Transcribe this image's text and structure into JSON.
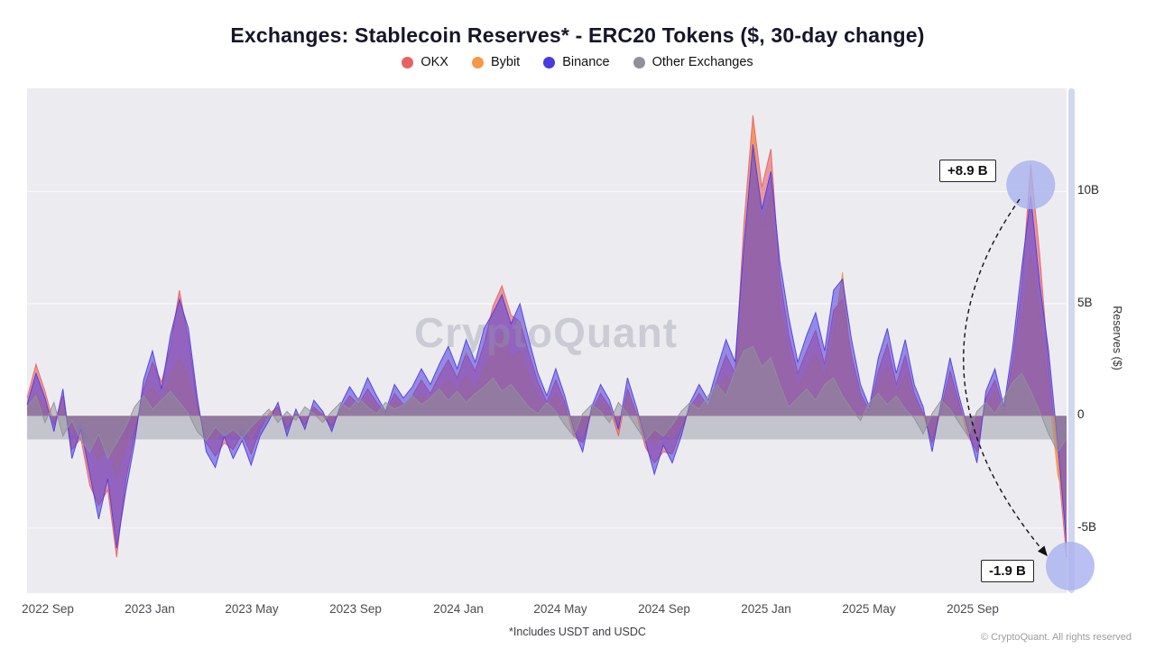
{
  "watermark": "CryptoQuant",
  "footnote": "*Includes USDT and USDC",
  "copyright": "© CryptoQuant. All rights reserved",
  "chart_data": {
    "type": "area",
    "title": "Exchanges: Stablecoin Reserves* - ERC20 Tokens ($, 30-day change)",
    "xlabel": "",
    "ylabel": "Reserves ($)",
    "unit": "billions USD (30-day change)",
    "ylim": [
      -7.9,
      14.6
    ],
    "grid": "horizontal",
    "legend_position": "top",
    "x_note": "evenly spaced samples (~10.7 days apart) from late Aug 2022 to mid Nov 2025; x_ticks give calendar anchors by sample index t",
    "x_ticks": [
      {
        "label": "2022 Sep",
        "t": 2.3
      },
      {
        "label": "2023 Jan",
        "t": 13.7
      },
      {
        "label": "2023 May",
        "t": 25.1
      },
      {
        "label": "2023 Sep",
        "t": 36.7
      },
      {
        "label": "2024 Jan",
        "t": 48.1
      },
      {
        "label": "2024 May",
        "t": 59.5
      },
      {
        "label": "2024 Sep",
        "t": 71.1
      },
      {
        "label": "2025 Jan",
        "t": 82.5
      },
      {
        "label": "2025 May",
        "t": 93.9
      },
      {
        "label": "2025 Sep",
        "t": 105.5
      }
    ],
    "y_ticks": [
      {
        "label": "10B",
        "value": 10
      },
      {
        "label": "5B",
        "value": 5
      },
      {
        "label": "0",
        "value": 0
      },
      {
        "label": "-5B",
        "value": -5
      }
    ],
    "zero_band": {
      "from": 0,
      "to": -1.05,
      "color": "#bdbdc5"
    },
    "series": [
      {
        "name": "OKX",
        "color": "#e86161",
        "fill_opacity": 0.6,
        "values": [
          0.8,
          2.3,
          1.1,
          -0.4,
          0.9,
          -1.5,
          -1.0,
          -3.1,
          -4.0,
          -3.3,
          -6.3,
          -2.9,
          -0.8,
          1.2,
          2.4,
          1.5,
          3.1,
          5.6,
          3.4,
          0.5,
          -1.2,
          -1.8,
          -1.2,
          -1.5,
          -0.8,
          -1.7,
          -0.6,
          0.1,
          0.4,
          -0.6,
          0.1,
          -0.4,
          0.4,
          0.0,
          -0.5,
          0.3,
          0.9,
          0.5,
          1.2,
          0.6,
          0.1,
          1.0,
          0.5,
          0.9,
          1.6,
          1.0,
          1.8,
          2.5,
          1.7,
          2.8,
          2.0,
          3.2,
          4.9,
          5.8,
          4.5,
          4.2,
          2.8,
          1.5,
          0.6,
          1.6,
          0.6,
          -0.9,
          -1.2,
          0.2,
          1.0,
          0.4,
          -0.9,
          1.2,
          0.1,
          -1.4,
          -2.1,
          -1.6,
          -1.7,
          -0.6,
          0.4,
          1.0,
          0.4,
          1.6,
          2.7,
          1.9,
          8.6,
          13.4,
          10.2,
          11.9,
          6.2,
          3.6,
          1.9,
          2.9,
          3.8,
          2.3,
          4.7,
          5.2,
          2.7,
          1.0,
          0.2,
          2.0,
          3.2,
          1.4,
          2.7,
          1.0,
          0.1,
          -1.2,
          0.3,
          2.0,
          0.6,
          -0.9,
          -1.6,
          0.8,
          1.6,
          0.2,
          2.5,
          5.8,
          11.2,
          7.2,
          2.2,
          -2.0,
          -6.3
        ]
      },
      {
        "name": "Bybit",
        "color": "#f5984a",
        "fill_opacity": 0.65,
        "values": [
          0.3,
          1.0,
          0.4,
          -0.2,
          0.5,
          -0.8,
          -0.3,
          -1.2,
          -2.0,
          -1.4,
          -2.8,
          -1.5,
          -0.4,
          0.7,
          1.3,
          0.6,
          1.8,
          2.6,
          1.7,
          0.3,
          -0.8,
          -1.1,
          -0.5,
          -0.9,
          -0.5,
          -1.0,
          -0.4,
          0.0,
          0.3,
          -0.4,
          0.1,
          -0.3,
          0.3,
          0.1,
          -0.3,
          0.2,
          0.6,
          0.3,
          0.8,
          0.4,
          0.1,
          0.7,
          0.4,
          0.6,
          1.0,
          0.7,
          1.2,
          1.6,
          1.1,
          1.8,
          1.2,
          2.1,
          3.0,
          3.8,
          2.6,
          2.9,
          1.8,
          0.9,
          0.4,
          1.0,
          0.4,
          -0.5,
          -0.8,
          0.2,
          0.7,
          0.3,
          -0.4,
          0.8,
          0.1,
          -0.7,
          -1.3,
          -0.8,
          -1.0,
          -0.4,
          0.3,
          0.7,
          0.3,
          1.1,
          1.8,
          1.3,
          5.9,
          13.0,
          8.4,
          9.9,
          4.8,
          2.8,
          1.3,
          2.1,
          2.8,
          1.7,
          3.6,
          6.4,
          2.1,
          0.7,
          0.1,
          1.4,
          2.3,
          1.0,
          1.9,
          0.7,
          0.0,
          -0.9,
          0.2,
          1.4,
          0.4,
          -0.6,
          -1.1,
          0.5,
          1.1,
          0.1,
          1.8,
          4.2,
          7.3,
          4.6,
          1.2,
          -2.6,
          -4.2
        ]
      },
      {
        "name": "Binance",
        "color": "#4b3ae0",
        "fill_opacity": 0.55,
        "values": [
          0.5,
          1.9,
          0.8,
          -0.7,
          1.2,
          -1.9,
          -0.6,
          -2.6,
          -4.6,
          -2.8,
          -5.9,
          -3.4,
          -1.2,
          1.6,
          2.9,
          1.2,
          3.6,
          5.2,
          3.9,
          0.8,
          -1.6,
          -2.3,
          -0.9,
          -1.9,
          -1.1,
          -2.2,
          -0.9,
          -0.2,
          0.6,
          -0.9,
          0.3,
          -0.6,
          0.7,
          0.2,
          -0.7,
          0.5,
          1.3,
          0.7,
          1.7,
          0.9,
          0.2,
          1.4,
          0.8,
          1.3,
          2.1,
          1.4,
          2.3,
          3.1,
          2.1,
          3.4,
          2.4,
          3.9,
          4.6,
          5.4,
          4.1,
          5.0,
          3.4,
          1.9,
          0.9,
          2.1,
          0.9,
          -0.6,
          -1.6,
          0.4,
          1.4,
          0.7,
          -0.6,
          1.7,
          0.4,
          -1.1,
          -2.6,
          -1.3,
          -2.1,
          -0.9,
          0.6,
          1.4,
          0.7,
          2.1,
          3.4,
          2.4,
          7.6,
          12.1,
          9.2,
          10.9,
          6.9,
          4.4,
          2.4,
          3.6,
          4.6,
          2.9,
          5.6,
          6.1,
          3.4,
          1.4,
          0.4,
          2.6,
          3.9,
          1.9,
          3.4,
          1.4,
          0.4,
          -1.6,
          0.6,
          2.6,
          0.9,
          -0.6,
          -2.1,
          1.1,
          2.1,
          0.4,
          3.1,
          6.6,
          9.8,
          5.9,
          2.9,
          -1.2,
          -5.7
        ]
      },
      {
        "name": "Other Exchanges",
        "color": "#90909a",
        "fill_opacity": 0.5,
        "values": [
          0.4,
          0.9,
          -0.3,
          0.6,
          -0.9,
          -0.2,
          -1.1,
          -1.6,
          -0.8,
          -1.9,
          -1.2,
          -0.5,
          0.4,
          0.9,
          0.3,
          0.7,
          1.1,
          0.6,
          0.1,
          -0.7,
          -1.1,
          -0.5,
          -0.9,
          -0.6,
          -1.0,
          -0.5,
          -0.1,
          0.3,
          -0.3,
          0.2,
          -0.2,
          0.4,
          0.1,
          -0.3,
          0.2,
          0.6,
          0.3,
          0.8,
          0.4,
          0.1,
          0.6,
          0.3,
          0.5,
          0.9,
          0.5,
          0.8,
          1.2,
          0.7,
          1.1,
          0.6,
          1.0,
          1.3,
          1.7,
          1.1,
          1.4,
          0.9,
          0.4,
          0.1,
          0.6,
          0.2,
          -0.4,
          -0.9,
          0.1,
          0.5,
          0.2,
          -0.3,
          0.6,
          0.1,
          -0.5,
          -1.1,
          -0.6,
          -0.9,
          -0.4,
          0.2,
          0.6,
          0.3,
          0.9,
          1.4,
          0.9,
          2.0,
          2.9,
          3.1,
          2.2,
          2.6,
          1.4,
          0.4,
          0.8,
          1.2,
          0.7,
          1.4,
          1.7,
          0.9,
          0.3,
          -0.2,
          0.6,
          1.0,
          0.5,
          0.9,
          0.3,
          -0.1,
          -0.8,
          0.1,
          0.7,
          0.3,
          -0.3,
          -0.9,
          0.2,
          0.6,
          0.1,
          0.8,
          1.5,
          1.9,
          1.1,
          0.2,
          -0.8,
          -1.6,
          -1.0
        ]
      }
    ],
    "annotations": [
      {
        "label": "+8.9 B",
        "t": 112,
        "value": 10.3
      },
      {
        "label": "-1.9 B",
        "t": 116.4,
        "value": -6.7
      }
    ],
    "annotation_circle_color": "#a9b2ef"
  }
}
